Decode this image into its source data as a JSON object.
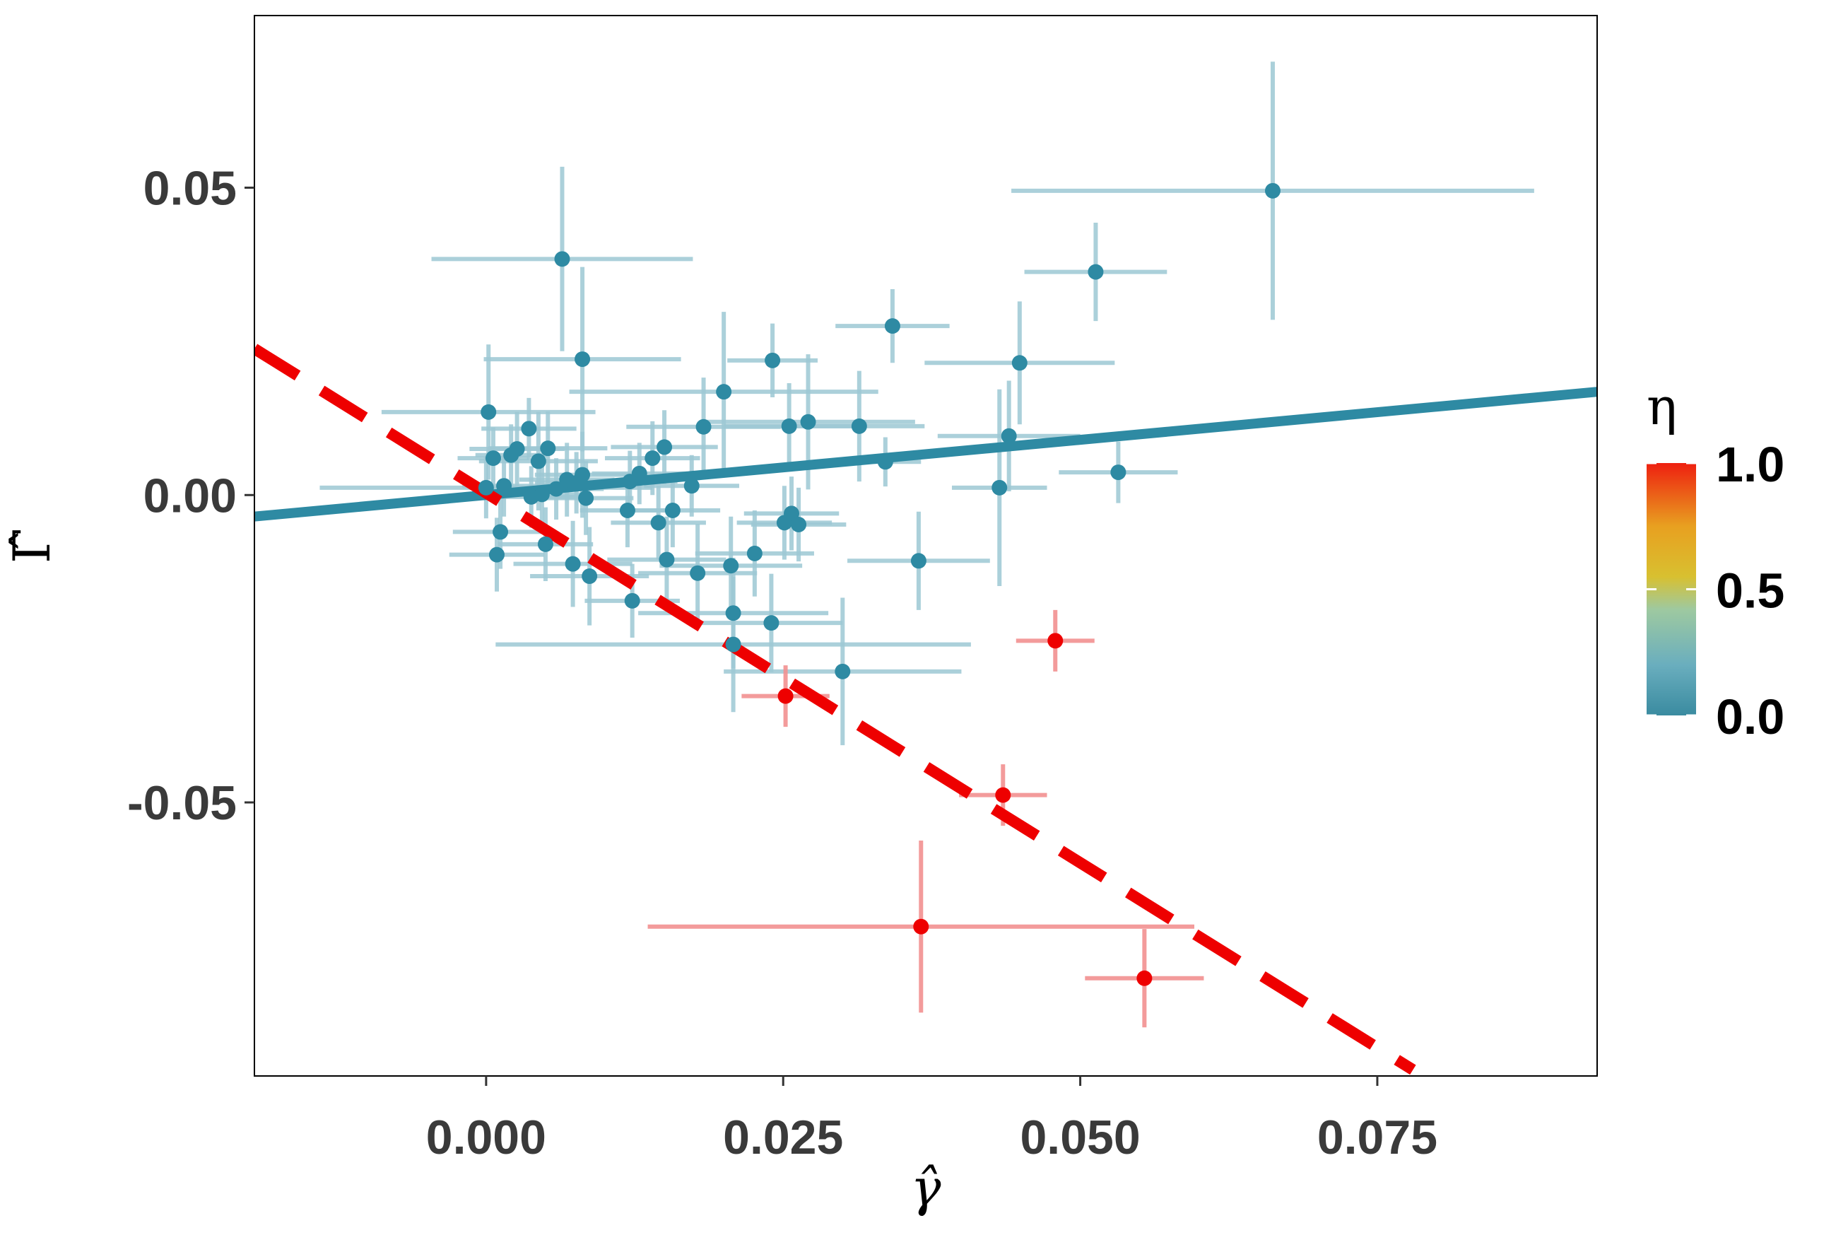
{
  "chart_data": {
    "type": "scatter",
    "title": "",
    "xlabel": "γ̂",
    "ylabel": "Γ̂",
    "xlim": [
      -0.0195,
      0.0935
    ],
    "ylim": [
      -0.0945,
      0.078
    ],
    "grid": false,
    "x_ticks": [
      {
        "value": 0.0,
        "label": "0.000"
      },
      {
        "value": 0.025,
        "label": "0.025"
      },
      {
        "value": 0.05,
        "label": "0.050"
      },
      {
        "value": 0.075,
        "label": "0.075"
      }
    ],
    "y_ticks": [
      {
        "value": 0.05,
        "label": "0.05"
      },
      {
        "value": 0.0,
        "label": "0.00"
      },
      {
        "value": -0.05,
        "label": "-0.05"
      }
    ],
    "legend": {
      "title": "η",
      "position": "right",
      "type": "colorbar",
      "range": [
        0,
        1
      ],
      "ticks": [
        {
          "value": 1.0,
          "label": "1.0"
        },
        {
          "value": 0.5,
          "label": "0.5"
        },
        {
          "value": 0.0,
          "label": "0.0"
        }
      ],
      "colors": [
        "#3a8ba0",
        "#6aaebe",
        "#9ec9a0",
        "#d8c030",
        "#e8a020",
        "#ee2010"
      ]
    },
    "colors": {
      "low": "#2e8aa3",
      "high": "#ee0000",
      "line": "#2e8aa3",
      "dashed": "#ee0000"
    },
    "lines": [
      {
        "name": "fit-solid",
        "style": "solid",
        "x1": -0.0195,
        "y1": -0.0035,
        "x2": 0.0935,
        "y2": 0.0168
      },
      {
        "name": "fit-dashed",
        "style": "dashed",
        "x1": -0.0195,
        "y1": 0.0238,
        "x2": 0.078,
        "y2": -0.0935
      }
    ],
    "points": [
      {
        "x": 0.0662,
        "y": 0.0495,
        "xerr": 0.022,
        "yerr": 0.021,
        "eta": 0
      },
      {
        "x": 0.0513,
        "y": 0.0363,
        "xerr": 0.006,
        "yerr": 0.008,
        "eta": 0
      },
      {
        "x": 0.0064,
        "y": 0.0384,
        "xerr": 0.011,
        "yerr": 0.015,
        "eta": 0
      },
      {
        "x": 0.0342,
        "y": 0.0275,
        "xerr": 0.0048,
        "yerr": 0.006,
        "eta": 0
      },
      {
        "x": 0.0081,
        "y": 0.0221,
        "xerr": 0.0083,
        "yerr": 0.015,
        "eta": 0
      },
      {
        "x": 0.0241,
        "y": 0.0219,
        "xerr": 0.0038,
        "yerr": 0.006,
        "eta": 0
      },
      {
        "x": 0.0449,
        "y": 0.0215,
        "xerr": 0.008,
        "yerr": 0.01,
        "eta": 0
      },
      {
        "x": 0.02,
        "y": 0.0168,
        "xerr": 0.013,
        "yerr": 0.013,
        "eta": 0
      },
      {
        "x": 0.0002,
        "y": 0.0135,
        "xerr": 0.009,
        "yerr": 0.011,
        "eta": 0
      },
      {
        "x": 0.0271,
        "y": 0.0119,
        "xerr": 0.009,
        "yerr": 0.011,
        "eta": 0
      },
      {
        "x": 0.0183,
        "y": 0.0111,
        "xerr": 0.0065,
        "yerr": 0.008,
        "eta": 0
      },
      {
        "x": 0.0255,
        "y": 0.0112,
        "xerr": 0.0055,
        "yerr": 0.007,
        "eta": 0
      },
      {
        "x": 0.0314,
        "y": 0.0112,
        "xerr": 0.0055,
        "yerr": 0.009,
        "eta": 0
      },
      {
        "x": 0.0036,
        "y": 0.0108,
        "xerr": 0.004,
        "yerr": 0.005,
        "eta": 0
      },
      {
        "x": 0.044,
        "y": 0.0096,
        "xerr": 0.006,
        "yerr": 0.009,
        "eta": 0
      },
      {
        "x": 0.0052,
        "y": 0.0076,
        "xerr": 0.005,
        "yerr": 0.006,
        "eta": 0
      },
      {
        "x": 0.0026,
        "y": 0.0075,
        "xerr": 0.004,
        "yerr": 0.006,
        "eta": 0
      },
      {
        "x": 0.015,
        "y": 0.0078,
        "xerr": 0.0045,
        "yerr": 0.006,
        "eta": 0
      },
      {
        "x": 0.0021,
        "y": 0.0065,
        "xerr": 0.003,
        "yerr": 0.005,
        "eta": 0
      },
      {
        "x": 0.0006,
        "y": 0.006,
        "xerr": 0.003,
        "yerr": 0.005,
        "eta": 0
      },
      {
        "x": 0.014,
        "y": 0.006,
        "xerr": 0.004,
        "yerr": 0.006,
        "eta": 0
      },
      {
        "x": 0.0044,
        "y": 0.0055,
        "xerr": 0.005,
        "yerr": 0.008,
        "eta": 0
      },
      {
        "x": 0.0336,
        "y": 0.0054,
        "xerr": 0.003,
        "yerr": 0.004,
        "eta": 0
      },
      {
        "x": 0.0532,
        "y": 0.0037,
        "xerr": 0.005,
        "yerr": 0.005,
        "eta": 0
      },
      {
        "x": 0.0129,
        "y": 0.0035,
        "xerr": 0.004,
        "yerr": 0.005,
        "eta": 0
      },
      {
        "x": 0.0081,
        "y": 0.0033,
        "xerr": 0.004,
        "yerr": 0.007,
        "eta": 0
      },
      {
        "x": 0.0068,
        "y": 0.0025,
        "xerr": 0.004,
        "yerr": 0.006,
        "eta": 0
      },
      {
        "x": 0.0121,
        "y": 0.0022,
        "xerr": 0.004,
        "yerr": 0.005,
        "eta": 0
      },
      {
        "x": 0.0076,
        "y": 0.002,
        "xerr": 0.0035,
        "yerr": 0.005,
        "eta": 0
      },
      {
        "x": 0.0173,
        "y": 0.0015,
        "xerr": 0.004,
        "yerr": 0.005,
        "eta": 0
      },
      {
        "x": 0.0015,
        "y": 0.0015,
        "xerr": 0.0035,
        "yerr": 0.005,
        "eta": 0
      },
      {
        "x": 0.0,
        "y": 0.0012,
        "xerr": 0.014,
        "yerr": 0.005,
        "eta": 0
      },
      {
        "x": 0.0059,
        "y": 0.001,
        "xerr": 0.004,
        "yerr": 0.005,
        "eta": 0
      },
      {
        "x": 0.0432,
        "y": 0.0012,
        "xerr": 0.004,
        "yerr": 0.016,
        "eta": 0
      },
      {
        "x": 0.0047,
        "y": 0.0001,
        "xerr": 0.004,
        "yerr": 0.005,
        "eta": 0
      },
      {
        "x": 0.0038,
        "y": -0.0003,
        "xerr": 0.004,
        "yerr": 0.005,
        "eta": 0
      },
      {
        "x": 0.0084,
        "y": -0.0005,
        "xerr": 0.004,
        "yerr": 0.006,
        "eta": 0
      },
      {
        "x": 0.0119,
        "y": -0.0025,
        "xerr": 0.004,
        "yerr": 0.006,
        "eta": 0
      },
      {
        "x": 0.0157,
        "y": -0.0025,
        "xerr": 0.004,
        "yerr": 0.006,
        "eta": 0
      },
      {
        "x": 0.0257,
        "y": -0.003,
        "xerr": 0.004,
        "yerr": 0.006,
        "eta": 0
      },
      {
        "x": 0.0145,
        "y": -0.0045,
        "xerr": 0.004,
        "yerr": 0.006,
        "eta": 0
      },
      {
        "x": 0.0251,
        "y": -0.0045,
        "xerr": 0.004,
        "yerr": 0.006,
        "eta": 0
      },
      {
        "x": 0.0263,
        "y": -0.0048,
        "xerr": 0.004,
        "yerr": 0.006,
        "eta": 0
      },
      {
        "x": 0.0012,
        "y": -0.006,
        "xerr": 0.004,
        "yerr": 0.006,
        "eta": 0
      },
      {
        "x": 0.005,
        "y": -0.008,
        "xerr": 0.004,
        "yerr": 0.006,
        "eta": 0
      },
      {
        "x": 0.0009,
        "y": -0.0097,
        "xerr": 0.004,
        "yerr": 0.006,
        "eta": 0
      },
      {
        "x": 0.0226,
        "y": -0.0095,
        "xerr": 0.005,
        "yerr": 0.007,
        "eta": 0
      },
      {
        "x": 0.0152,
        "y": -0.0105,
        "xerr": 0.005,
        "yerr": 0.007,
        "eta": 0
      },
      {
        "x": 0.0364,
        "y": -0.0107,
        "xerr": 0.006,
        "yerr": 0.008,
        "eta": 0
      },
      {
        "x": 0.0073,
        "y": -0.0112,
        "xerr": 0.005,
        "yerr": 0.007,
        "eta": 0
      },
      {
        "x": 0.0206,
        "y": -0.0115,
        "xerr": 0.006,
        "yerr": 0.008,
        "eta": 0
      },
      {
        "x": 0.0178,
        "y": -0.0127,
        "xerr": 0.005,
        "yerr": 0.008,
        "eta": 0
      },
      {
        "x": 0.0087,
        "y": -0.0132,
        "xerr": 0.005,
        "yerr": 0.008,
        "eta": 0
      },
      {
        "x": 0.0123,
        "y": -0.0172,
        "xerr": 0.004,
        "yerr": 0.006,
        "eta": 0
      },
      {
        "x": 0.0208,
        "y": -0.0192,
        "xerr": 0.008,
        "yerr": 0.009,
        "eta": 0
      },
      {
        "x": 0.024,
        "y": -0.0208,
        "xerr": 0.006,
        "yerr": 0.008,
        "eta": 0
      },
      {
        "x": 0.0208,
        "y": -0.0243,
        "xerr": 0.02,
        "yerr": 0.011,
        "eta": 0
      },
      {
        "x": 0.03,
        "y": -0.0287,
        "xerr": 0.01,
        "yerr": 0.012,
        "eta": 0
      },
      {
        "x": 0.0252,
        "y": -0.0327,
        "xerr": 0.0037,
        "yerr": 0.005,
        "eta": 1
      },
      {
        "x": 0.0479,
        "y": -0.0237,
        "xerr": 0.0033,
        "yerr": 0.005,
        "eta": 1
      },
      {
        "x": 0.0435,
        "y": -0.0488,
        "xerr": 0.0037,
        "yerr": 0.005,
        "eta": 1
      },
      {
        "x": 0.0366,
        "y": -0.0702,
        "xerr": 0.023,
        "yerr": 0.014,
        "eta": 1
      },
      {
        "x": 0.0554,
        "y": -0.0786,
        "xerr": 0.005,
        "yerr": 0.008,
        "eta": 1
      }
    ]
  }
}
